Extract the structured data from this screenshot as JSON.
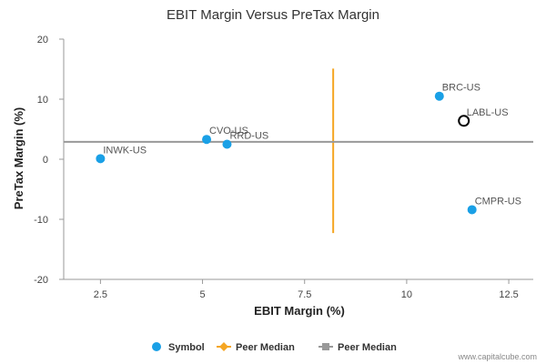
{
  "chart_data": {
    "type": "scatter",
    "title": "EBIT Margin Versus PreTax Margin",
    "xlabel": "EBIT Margin (%)",
    "ylabel": "PreTax Margin (%)",
    "xlim": [
      1.6,
      13.1
    ],
    "ylim": [
      -20,
      20
    ],
    "xticks": [
      2.5,
      5,
      7.5,
      10,
      12.5
    ],
    "xtick_labels": [
      "2.5",
      "5",
      "7.5",
      "10",
      "12.5"
    ],
    "yticks": [
      -20,
      -10,
      0,
      10,
      20
    ],
    "ytick_labels": [
      "-20",
      "-10",
      "0",
      "10",
      "20"
    ],
    "grid": false,
    "points": [
      {
        "label": "INWK-US",
        "x": 2.5,
        "y": 0.1,
        "kind": "symbol"
      },
      {
        "label": "CVO-US",
        "x": 5.1,
        "y": 3.3,
        "kind": "symbol"
      },
      {
        "label": "RRD-US",
        "x": 5.6,
        "y": 2.5,
        "kind": "symbol"
      },
      {
        "label": "BRC-US",
        "x": 10.8,
        "y": 10.5,
        "kind": "symbol"
      },
      {
        "label": "LABL-US",
        "x": 11.4,
        "y": 6.4,
        "kind": "highlight"
      },
      {
        "label": "CMPR-US",
        "x": 11.6,
        "y": -8.4,
        "kind": "symbol"
      }
    ],
    "peer_median_x": {
      "name": "Peer Median",
      "x": 8.2,
      "y_range": [
        -12.3,
        15.1
      ]
    },
    "peer_median_y": {
      "name": "Peer Median",
      "y": 2.9
    },
    "legend_position": "bottom",
    "legend": [
      {
        "name": "Symbol",
        "marker": "circle"
      },
      {
        "name": "Peer Median",
        "marker": "diamond-line"
      },
      {
        "name": "Peer Median",
        "marker": "square-line"
      }
    ],
    "colors": {
      "symbol": "#1aa0e6",
      "highlight_stroke": "#000000",
      "peer_median_x": "#f5a623",
      "peer_median_y": "#999999",
      "axis": "#999999"
    }
  },
  "credit": "www.capitalcube.com"
}
